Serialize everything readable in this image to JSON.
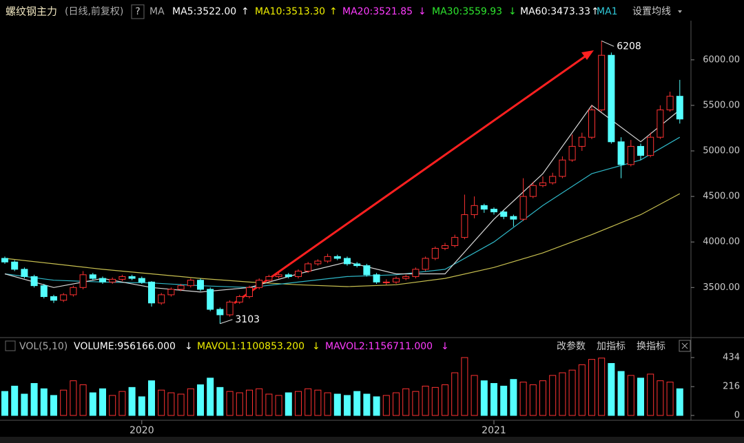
{
  "chart_data": {
    "type": "candlestick",
    "title": "螺纹钢主力",
    "subtitle": "(日线,前复权)",
    "help": "?",
    "ma_label": "MA",
    "ma_legend": [
      {
        "text": "MA5:3522.00",
        "arrow": "↑",
        "color": "#ffffff"
      },
      {
        "text": "MA10:3513.30",
        "arrow": "↑",
        "color": "#f0f000"
      },
      {
        "text": "MA20:3521.85",
        "arrow": "↓",
        "color": "#ff3cff"
      },
      {
        "text": "MA30:3559.93",
        "arrow": "↓",
        "color": "#2ee62e"
      },
      {
        "text": "MA60:3473.33",
        "arrow": "↑",
        "color": "#ffffff"
      },
      {
        "text": "MA1",
        "color": "#2fc8d8"
      }
    ],
    "ma_settings": "设置均线",
    "annotations": [
      {
        "text": "6208",
        "index": 61,
        "value": 6208
      },
      {
        "text": "3103",
        "index": 22,
        "value": 3103
      }
    ],
    "ylim": [
      2950,
      6430
    ],
    "yticks": [
      {
        "value": 3500,
        "label": "3500.00"
      },
      {
        "value": 4000,
        "label": "4000.00"
      },
      {
        "value": 4500,
        "label": "4500.00"
      },
      {
        "value": 5000,
        "label": "5000.00"
      },
      {
        "value": 5500,
        "label": "5500.00"
      },
      {
        "value": 6000,
        "label": "6000.00"
      }
    ],
    "xticks": [
      {
        "value": 14,
        "label": "2020"
      },
      {
        "value": 50,
        "label": "2021"
      }
    ],
    "up_color": "#ff3232",
    "down_color": "#54ffff",
    "candles": [
      [
        3820,
        3840,
        3760,
        3780
      ],
      [
        3780,
        3800,
        3680,
        3700
      ],
      [
        3700,
        3720,
        3600,
        3620
      ],
      [
        3620,
        3640,
        3500,
        3520
      ],
      [
        3520,
        3540,
        3380,
        3400
      ],
      [
        3400,
        3420,
        3330,
        3360
      ],
      [
        3360,
        3440,
        3340,
        3420
      ],
      [
        3420,
        3520,
        3400,
        3500
      ],
      [
        3500,
        3680,
        3480,
        3640
      ],
      [
        3640,
        3660,
        3580,
        3600
      ],
      [
        3600,
        3620,
        3540,
        3560
      ],
      [
        3560,
        3610,
        3540,
        3590
      ],
      [
        3590,
        3640,
        3570,
        3620
      ],
      [
        3620,
        3640,
        3580,
        3600
      ],
      [
        3600,
        3620,
        3540,
        3560
      ],
      [
        3560,
        3570,
        3290,
        3330
      ],
      [
        3330,
        3440,
        3310,
        3420
      ],
      [
        3420,
        3500,
        3400,
        3480
      ],
      [
        3480,
        3540,
        3460,
        3520
      ],
      [
        3520,
        3600,
        3500,
        3580
      ],
      [
        3580,
        3600,
        3460,
        3480
      ],
      [
        3480,
        3500,
        3240,
        3260
      ],
      [
        3260,
        3280,
        3103,
        3200
      ],
      [
        3200,
        3360,
        3180,
        3340
      ],
      [
        3340,
        3420,
        3320,
        3400
      ],
      [
        3400,
        3520,
        3380,
        3500
      ],
      [
        3500,
        3600,
        3480,
        3580
      ],
      [
        3580,
        3640,
        3560,
        3620
      ],
      [
        3620,
        3660,
        3600,
        3640
      ],
      [
        3640,
        3660,
        3600,
        3620
      ],
      [
        3620,
        3700,
        3600,
        3680
      ],
      [
        3680,
        3780,
        3660,
        3760
      ],
      [
        3760,
        3810,
        3740,
        3790
      ],
      [
        3790,
        3870,
        3770,
        3840
      ],
      [
        3840,
        3860,
        3800,
        3820
      ],
      [
        3820,
        3840,
        3740,
        3760
      ],
      [
        3760,
        3780,
        3720,
        3740
      ],
      [
        3740,
        3760,
        3620,
        3640
      ],
      [
        3640,
        3660,
        3540,
        3560
      ],
      [
        3560,
        3590,
        3530,
        3560
      ],
      [
        3560,
        3620,
        3540,
        3600
      ],
      [
        3600,
        3640,
        3580,
        3620
      ],
      [
        3620,
        3720,
        3600,
        3700
      ],
      [
        3700,
        3840,
        3680,
        3820
      ],
      [
        3820,
        3950,
        3800,
        3930
      ],
      [
        3930,
        3990,
        3910,
        3960
      ],
      [
        3960,
        4080,
        3940,
        4050
      ],
      [
        4050,
        4520,
        4030,
        4300
      ],
      [
        4300,
        4500,
        4260,
        4400
      ],
      [
        4400,
        4420,
        4320,
        4360
      ],
      [
        4360,
        4380,
        4300,
        4330
      ],
      [
        4330,
        4350,
        4250,
        4280
      ],
      [
        4280,
        4300,
        4170,
        4250
      ],
      [
        4250,
        4700,
        4230,
        4500
      ],
      [
        4500,
        4660,
        4480,
        4620
      ],
      [
        4620,
        4720,
        4600,
        4650
      ],
      [
        4650,
        4760,
        4630,
        4720
      ],
      [
        4720,
        4940,
        4700,
        4900
      ],
      [
        4900,
        5180,
        4880,
        5050
      ],
      [
        5050,
        5200,
        5000,
        5150
      ],
      [
        5150,
        5500,
        5130,
        5450
      ],
      [
        5450,
        6208,
        5430,
        6050
      ],
      [
        6050,
        6080,
        5080,
        5100
      ],
      [
        5100,
        5150,
        4700,
        4850
      ],
      [
        4850,
        5120,
        4830,
        5050
      ],
      [
        5050,
        5080,
        4900,
        4950
      ],
      [
        4950,
        5200,
        4930,
        5150
      ],
      [
        5150,
        5500,
        5130,
        5450
      ],
      [
        5450,
        5650,
        5430,
        5600
      ],
      [
        5600,
        5780,
        5300,
        5350
      ]
    ],
    "lines": [
      {
        "color": "#c8c050",
        "x": [
          0,
          5,
          10,
          15,
          20,
          25,
          30,
          35,
          40,
          45,
          50,
          55,
          60,
          65,
          69
        ],
        "values": [
          3820,
          3760,
          3700,
          3650,
          3600,
          3560,
          3530,
          3510,
          3530,
          3600,
          3720,
          3880,
          4080,
          4300,
          4530
        ]
      },
      {
        "color": "#2fb8c8",
        "x": [
          0,
          5,
          10,
          15,
          20,
          25,
          30,
          35,
          40,
          45,
          50,
          55,
          60,
          65,
          69
        ],
        "values": [
          3650,
          3580,
          3560,
          3550,
          3520,
          3500,
          3560,
          3620,
          3640,
          3700,
          4000,
          4400,
          4750,
          4900,
          5150
        ]
      },
      {
        "color": "#d8d8d8",
        "x": [
          0,
          5,
          10,
          15,
          20,
          25,
          30,
          35,
          40,
          45,
          50,
          55,
          60,
          65,
          69
        ],
        "values": [
          3650,
          3500,
          3600,
          3500,
          3450,
          3500,
          3650,
          3780,
          3650,
          3650,
          4250,
          4750,
          5500,
          5100,
          5450
        ]
      }
    ],
    "volume": {
      "label": "VOL(5,10)",
      "legend": [
        {
          "text": "VOLUME:956166.000",
          "arrow": "↓",
          "color": "#ffffff"
        },
        {
          "text": "MAVOL1:1100853.200",
          "arrow": "↓",
          "color": "#f0f000"
        },
        {
          "text": "MAVOL2:1156711.000",
          "arrow": "↓",
          "color": "#ff3cff"
        }
      ],
      "buttons": [
        "改参数",
        "加指标",
        "换指标"
      ],
      "ylim": [
        0,
        470
      ],
      "yticks": [
        0,
        216,
        434
      ],
      "values": [
        180,
        220,
        160,
        240,
        200,
        150,
        190,
        260,
        230,
        170,
        200,
        150,
        180,
        210,
        140,
        260,
        190,
        170,
        160,
        200,
        230,
        280,
        210,
        180,
        170,
        190,
        200,
        160,
        150,
        170,
        180,
        200,
        190,
        170,
        160,
        150,
        180,
        160,
        140,
        150,
        170,
        200,
        180,
        220,
        210,
        230,
        320,
        434,
        300,
        260,
        240,
        220,
        270,
        250,
        230,
        260,
        300,
        320,
        340,
        380,
        420,
        430,
        390,
        330,
        300,
        280,
        310,
        260,
        250,
        200
      ]
    }
  }
}
